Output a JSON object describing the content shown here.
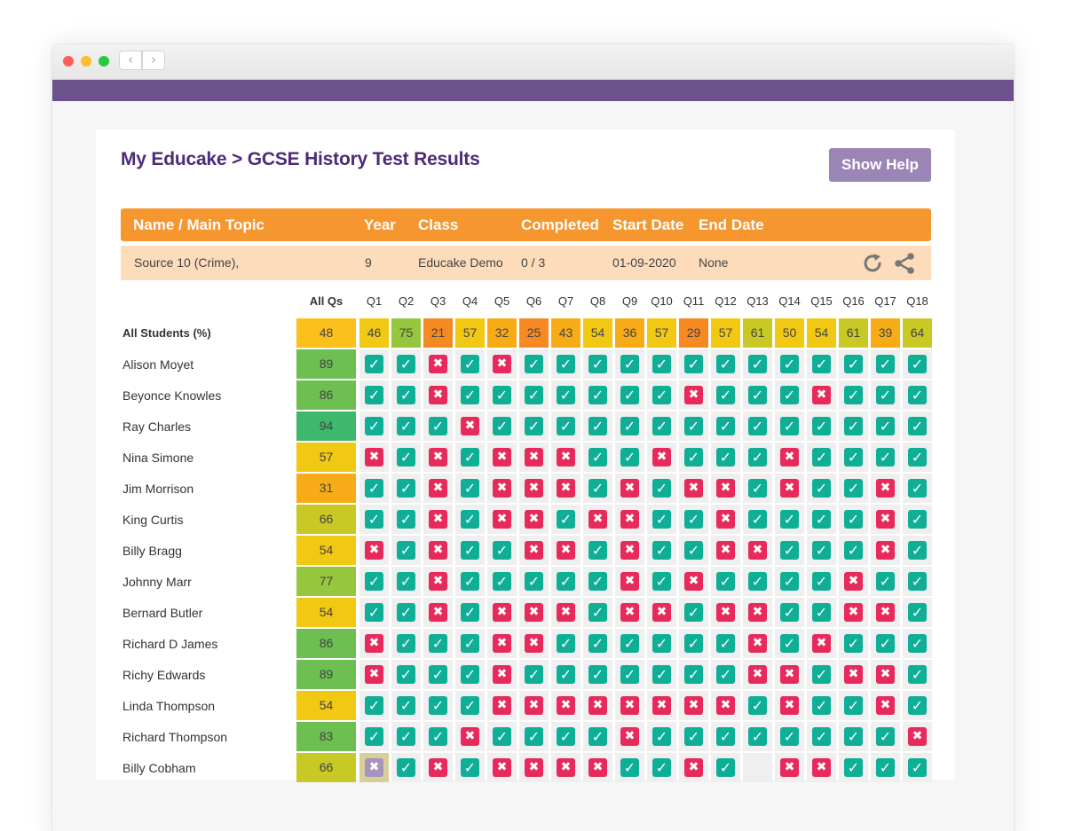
{
  "page_title": "My Educake > GCSE History Test Results",
  "help_button": "Show Help",
  "table_headers": {
    "name": "Name / Main Topic",
    "year": "Year",
    "class": "Class",
    "completed": "Completed",
    "start": "Start Date",
    "end": "End Date"
  },
  "test_info": {
    "name": "Source 10 (Crime),",
    "year": "9",
    "class": "Educake Demo",
    "completed": "0 / 3",
    "start": "01-09-2020",
    "end": "None"
  },
  "grid": {
    "all_qs_label": "All Qs",
    "questions": [
      "Q1",
      "Q2",
      "Q3",
      "Q4",
      "Q5",
      "Q6",
      "Q7",
      "Q8",
      "Q9",
      "Q10",
      "Q11",
      "Q12",
      "Q13",
      "Q14",
      "Q15",
      "Q16",
      "Q17",
      "Q18"
    ],
    "all_students": {
      "label": "All Students (%)",
      "score": "48",
      "values": [
        "46",
        "75",
        "21",
        "57",
        "32",
        "25",
        "43",
        "54",
        "36",
        "57",
        "29",
        "57",
        "61",
        "50",
        "54",
        "61",
        "39",
        "64"
      ]
    },
    "students": [
      {
        "name": "Alison Moyet",
        "score": "89",
        "answers": "TTXTXTTTTTTTTTTTTT"
      },
      {
        "name": "Beyonce Knowles",
        "score": "86",
        "answers": "TTXTTTTTTTXTTTXTTT"
      },
      {
        "name": "Ray Charles",
        "score": "94",
        "answers": "TTTXTTTTTTTTTTTTTT"
      },
      {
        "name": "Nina Simone",
        "score": "57",
        "answers": "XTXTXXXTTXTTTXTTTT"
      },
      {
        "name": "Jim Morrison",
        "score": "31",
        "answers": "TTXTXXXTXTXXTXTTXT"
      },
      {
        "name": "King Curtis",
        "score": "66",
        "answers": "TTXTXXTXXTTXTTTTXT"
      },
      {
        "name": "Billy Bragg",
        "score": "54",
        "answers": "XTXTTXXTXTTXXTTTXT"
      },
      {
        "name": "Johnny Marr",
        "score": "77",
        "answers": "TTXTTTTTXTXTTTTXTT"
      },
      {
        "name": "Bernard Butler",
        "score": "54",
        "answers": "TTXTXXXTXXTXXTTXXT"
      },
      {
        "name": "Richard D James",
        "score": "86",
        "answers": "XTTTXXTTTTTTXTXTTT"
      },
      {
        "name": "Richy Edwards",
        "score": "89",
        "answers": "XTTTXTTTTTTTXXTXXT"
      },
      {
        "name": "Linda Thompson",
        "score": "54",
        "answers": "TTTTXXXXXXXXTXTTXT"
      },
      {
        "name": "Richard Thompson",
        "score": "83",
        "answers": "TTTXTTTTXTTTTTTTTX"
      },
      {
        "name": "Billy Cobham",
        "score": "66",
        "answers": "FTXTXXXXTTXT-XXTTT"
      }
    ]
  },
  "colors": {
    "purple_bar": "#6b528c",
    "title": "#4e2a78",
    "header_orange": "#f6962f",
    "info_peach": "#fddcbb",
    "tick": "#0fae96",
    "cross": "#e8295b"
  },
  "icons": [
    "refresh-icon",
    "share-icon",
    "tick-icon",
    "cross-icon"
  ]
}
